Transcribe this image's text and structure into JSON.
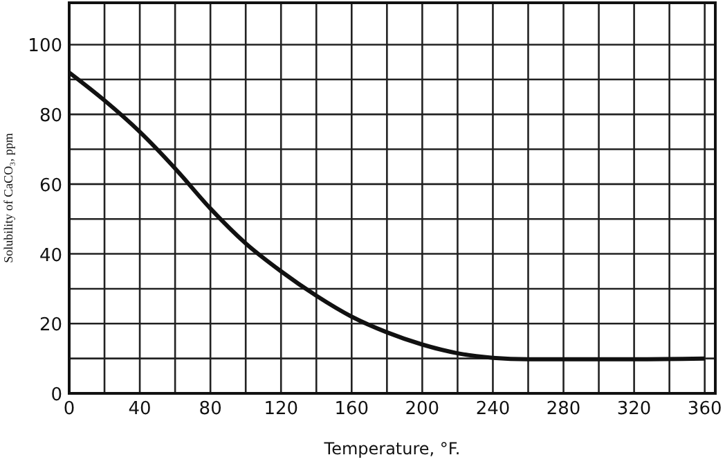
{
  "chart_data": {
    "type": "line",
    "xlabel": "Temperature, °F.",
    "ylabel": "Solubility of CaCO₃, ppm",
    "x": [
      0,
      20,
      40,
      60,
      80,
      100,
      120,
      140,
      160,
      180,
      200,
      220,
      240,
      260,
      280,
      320,
      360
    ],
    "series": [
      {
        "color": "#111111",
        "values": [
          92,
          84,
          75,
          64.5,
          53,
          43,
          35,
          28,
          22,
          17.5,
          14,
          11.5,
          10.2,
          9.8,
          9.8,
          9.8,
          10
        ]
      }
    ],
    "xlim": [
      0,
      366
    ],
    "ylim": [
      0,
      112
    ],
    "xticks": [
      0,
      {
        "value": 20,
        "label": null
      },
      40,
      {
        "value": 60,
        "label": null
      },
      80,
      {
        "value": 100,
        "label": null
      },
      120,
      {
        "value": 140,
        "label": null
      },
      160,
      {
        "value": 180,
        "label": null
      },
      200,
      {
        "value": 220,
        "label": null
      },
      240,
      {
        "value": 260,
        "label": null
      },
      280,
      {
        "value": 300,
        "label": null
      },
      320,
      {
        "value": 340,
        "label": null
      },
      360
    ],
    "yticks": [
      0,
      {
        "value": 10,
        "label": null
      },
      20,
      {
        "value": 30,
        "label": null
      },
      40,
      {
        "value": 50,
        "label": null
      },
      60,
      {
        "value": 70,
        "label": null
      },
      80,
      {
        "value": 90,
        "label": null
      },
      100
    ],
    "grid": true,
    "marker": "none",
    "line_style": "solid"
  }
}
